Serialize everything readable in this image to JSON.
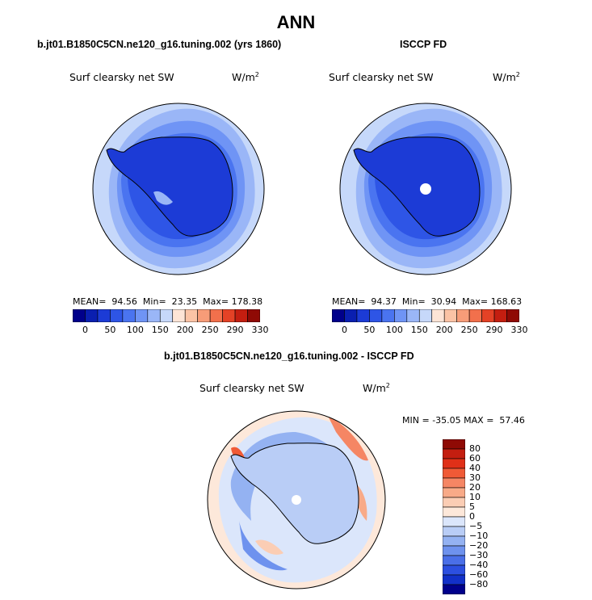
{
  "title": "ANN",
  "panel_left": {
    "case_title": "b.jt01.B1850C5CN.ne120_g16.tuning.002 (yrs 1860)",
    "variable": "Surf clearsky net SW",
    "units_base": "W/m",
    "units_sup": "2",
    "stats": {
      "mean_label": "MEAN=",
      "mean": "94.56",
      "min_label": "Min=",
      "min": "23.35",
      "max_label": "Max=",
      "max": "178.38"
    }
  },
  "panel_right": {
    "case_title": "ISCCP FD",
    "variable": "Surf clearsky net SW",
    "units_base": "W/m",
    "units_sup": "2",
    "stats": {
      "mean_label": "MEAN=",
      "mean": "94.37",
      "min_label": "Min=",
      "min": "30.94",
      "max_label": "Max=",
      "max": "168.63"
    }
  },
  "panel_diff": {
    "case_title": "b.jt01.B1850C5CN.ne120_g16.tuning.002 - ISCCP FD",
    "variable": "Surf clearsky net SW",
    "units_base": "W/m",
    "units_sup": "2",
    "stats": {
      "min_label": "MIN =",
      "min": "-35.05",
      "max_label": "MAX =",
      "max": "57.46"
    }
  },
  "colorbar_abs": {
    "colors": [
      "#00008b",
      "#0a1fb0",
      "#1c3bd6",
      "#2e55e6",
      "#4a74f0",
      "#6f94f5",
      "#9ab6f7",
      "#c6d8fa",
      "#fde4d6",
      "#fbc3a5",
      "#f79c78",
      "#f2704c",
      "#e44226",
      "#c41e10",
      "#8f0a05"
    ],
    "tick_labels": [
      "0",
      "50",
      "100",
      "150",
      "200",
      "250",
      "290",
      "330"
    ]
  },
  "colorbar_diff": {
    "colors": [
      "#8f0a05",
      "#c41e10",
      "#e03018",
      "#f05a36",
      "#f58664",
      "#f8aa88",
      "#fbcdb4",
      "#fde8da",
      "#dbe6fb",
      "#b9cdf6",
      "#94b2f2",
      "#6e92ee",
      "#4a6fe8",
      "#2c4fe0",
      "#1230c8",
      "#00008b"
    ],
    "tick_labels": [
      "80",
      "60",
      "40",
      "30",
      "20",
      "10",
      "5",
      "0",
      "−5",
      "−10",
      "−20",
      "−30",
      "−40",
      "−60",
      "−80"
    ]
  }
}
